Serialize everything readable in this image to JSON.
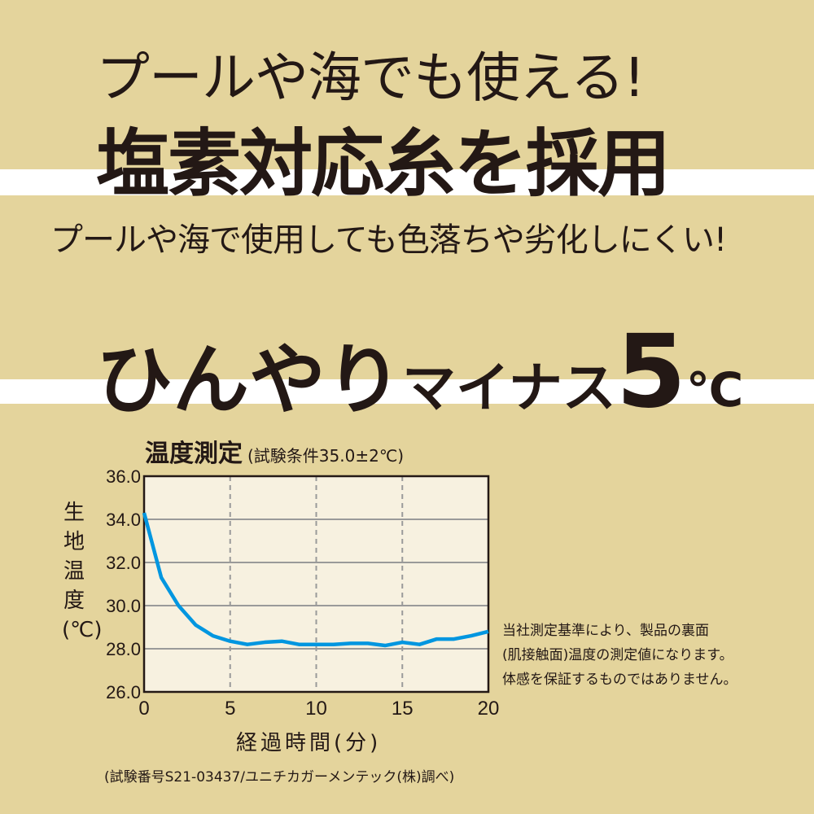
{
  "headline": {
    "line1": "プールや海でも使える!",
    "line2": "塩素対応糸を採用",
    "subline": "プールや海で使用しても色落ちや劣化しにくい!",
    "cool_part1": "ひんやり",
    "cool_part2": "マイナス",
    "cool_part3": "5",
    "cool_part4": "℃"
  },
  "colors": {
    "background": "#e4d49c",
    "plot_bg": "#f7f1e0",
    "line": "#0096e0",
    "grid": "#9a9a9a",
    "text": "#231815"
  },
  "chart_data": {
    "type": "line",
    "title": "温度測定",
    "subtitle": "(試験条件35.0±2℃)",
    "xlabel": "経過時間(分)",
    "ylabel": "生地温度(℃)",
    "xlim": [
      0,
      20
    ],
    "ylim": [
      26.0,
      36.0
    ],
    "xticks": [
      "0",
      "5",
      "10",
      "15",
      "20"
    ],
    "yticks": [
      "26.0",
      "28.0",
      "30.0",
      "32.0",
      "34.0",
      "36.0"
    ],
    "grid": "horizontal solid, vertical dashed",
    "x": [
      0,
      1,
      2,
      3,
      4,
      5,
      6,
      7,
      8,
      9,
      10,
      11,
      12,
      13,
      14,
      15,
      16,
      17,
      18,
      19,
      20
    ],
    "values": [
      34.3,
      31.3,
      30.0,
      29.1,
      28.6,
      28.35,
      28.2,
      28.3,
      28.35,
      28.2,
      28.2,
      28.2,
      28.25,
      28.25,
      28.15,
      28.3,
      28.2,
      28.45,
      28.45,
      28.6,
      28.8
    ]
  },
  "note": {
    "line1": "当社測定基準により、製品の裏面",
    "line2": "(肌接触面)温度の測定値になります。",
    "line3": "体感を保証するものではありません。"
  },
  "footnote": "(試験番号S21-03437/ユニチカガーメンテック(株)調べ)"
}
